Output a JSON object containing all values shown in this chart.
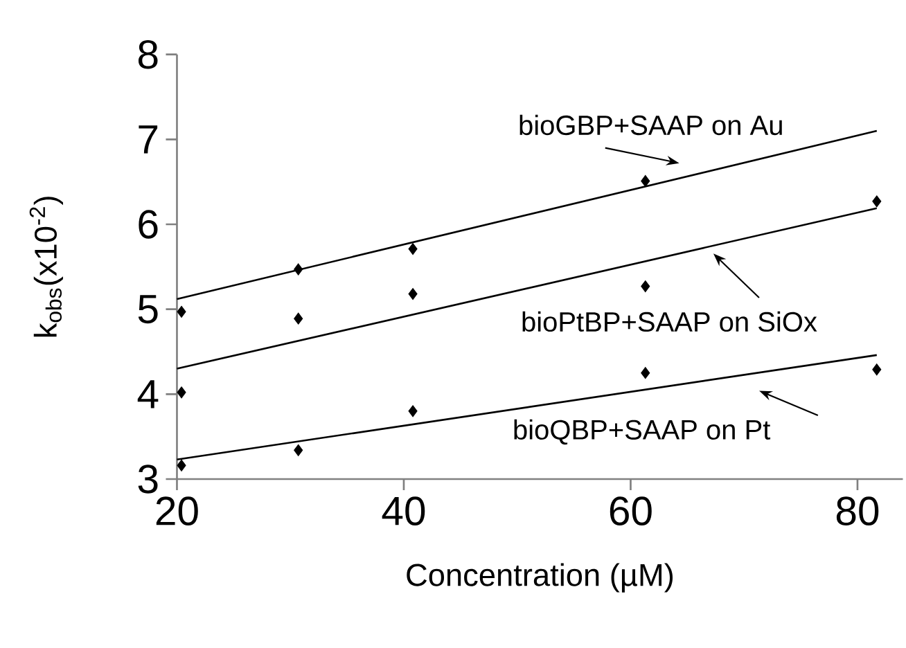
{
  "chart_data": {
    "type": "scatter",
    "xlabel": "Concentration (µM)",
    "ylabel": "k$_{obs}$(x10$^{-2}$)",
    "xlim": [
      20,
      84
    ],
    "ylim": [
      3,
      8
    ],
    "xticks": [
      20,
      40,
      60,
      80
    ],
    "yticks": [
      3,
      4,
      5,
      6,
      7,
      8
    ],
    "grid": false,
    "series": [
      {
        "color": "#000000",
        "marker": "diamond",
        "x": [
          20.4,
          30.7,
          40.8,
          61.3
        ],
        "values": [
          4.97,
          5.47,
          5.71,
          6.51
        ]
      },
      {
        "color": "#000000",
        "marker": "diamond",
        "x": [
          20.4,
          30.7,
          40.8,
          61.3,
          81.7
        ],
        "values": [
          4.02,
          4.89,
          5.18,
          5.27,
          6.27
        ]
      },
      {
        "color": "#000000",
        "marker": "diamond",
        "x": [
          20.4,
          30.7,
          40.8,
          61.3,
          81.7
        ],
        "values": [
          3.16,
          3.34,
          3.8,
          4.25,
          4.29
        ]
      },
      {
        "type": "line",
        "color": "#000000",
        "x": [
          20,
          81.7
        ],
        "values": [
          5.12,
          7.1
        ]
      },
      {
        "type": "line",
        "color": "#000000",
        "x": [
          20,
          81.7
        ],
        "values": [
          4.3,
          6.19
        ]
      },
      {
        "type": "line",
        "color": "#000000",
        "x": [
          20,
          81.7
        ],
        "values": [
          3.23,
          4.46
        ]
      }
    ],
    "annotations": [
      "bioGBP+SAAP on Au",
      "bioPtBP+SAAP on SiOx",
      "bioQBP+SAAP on Pt"
    ]
  }
}
